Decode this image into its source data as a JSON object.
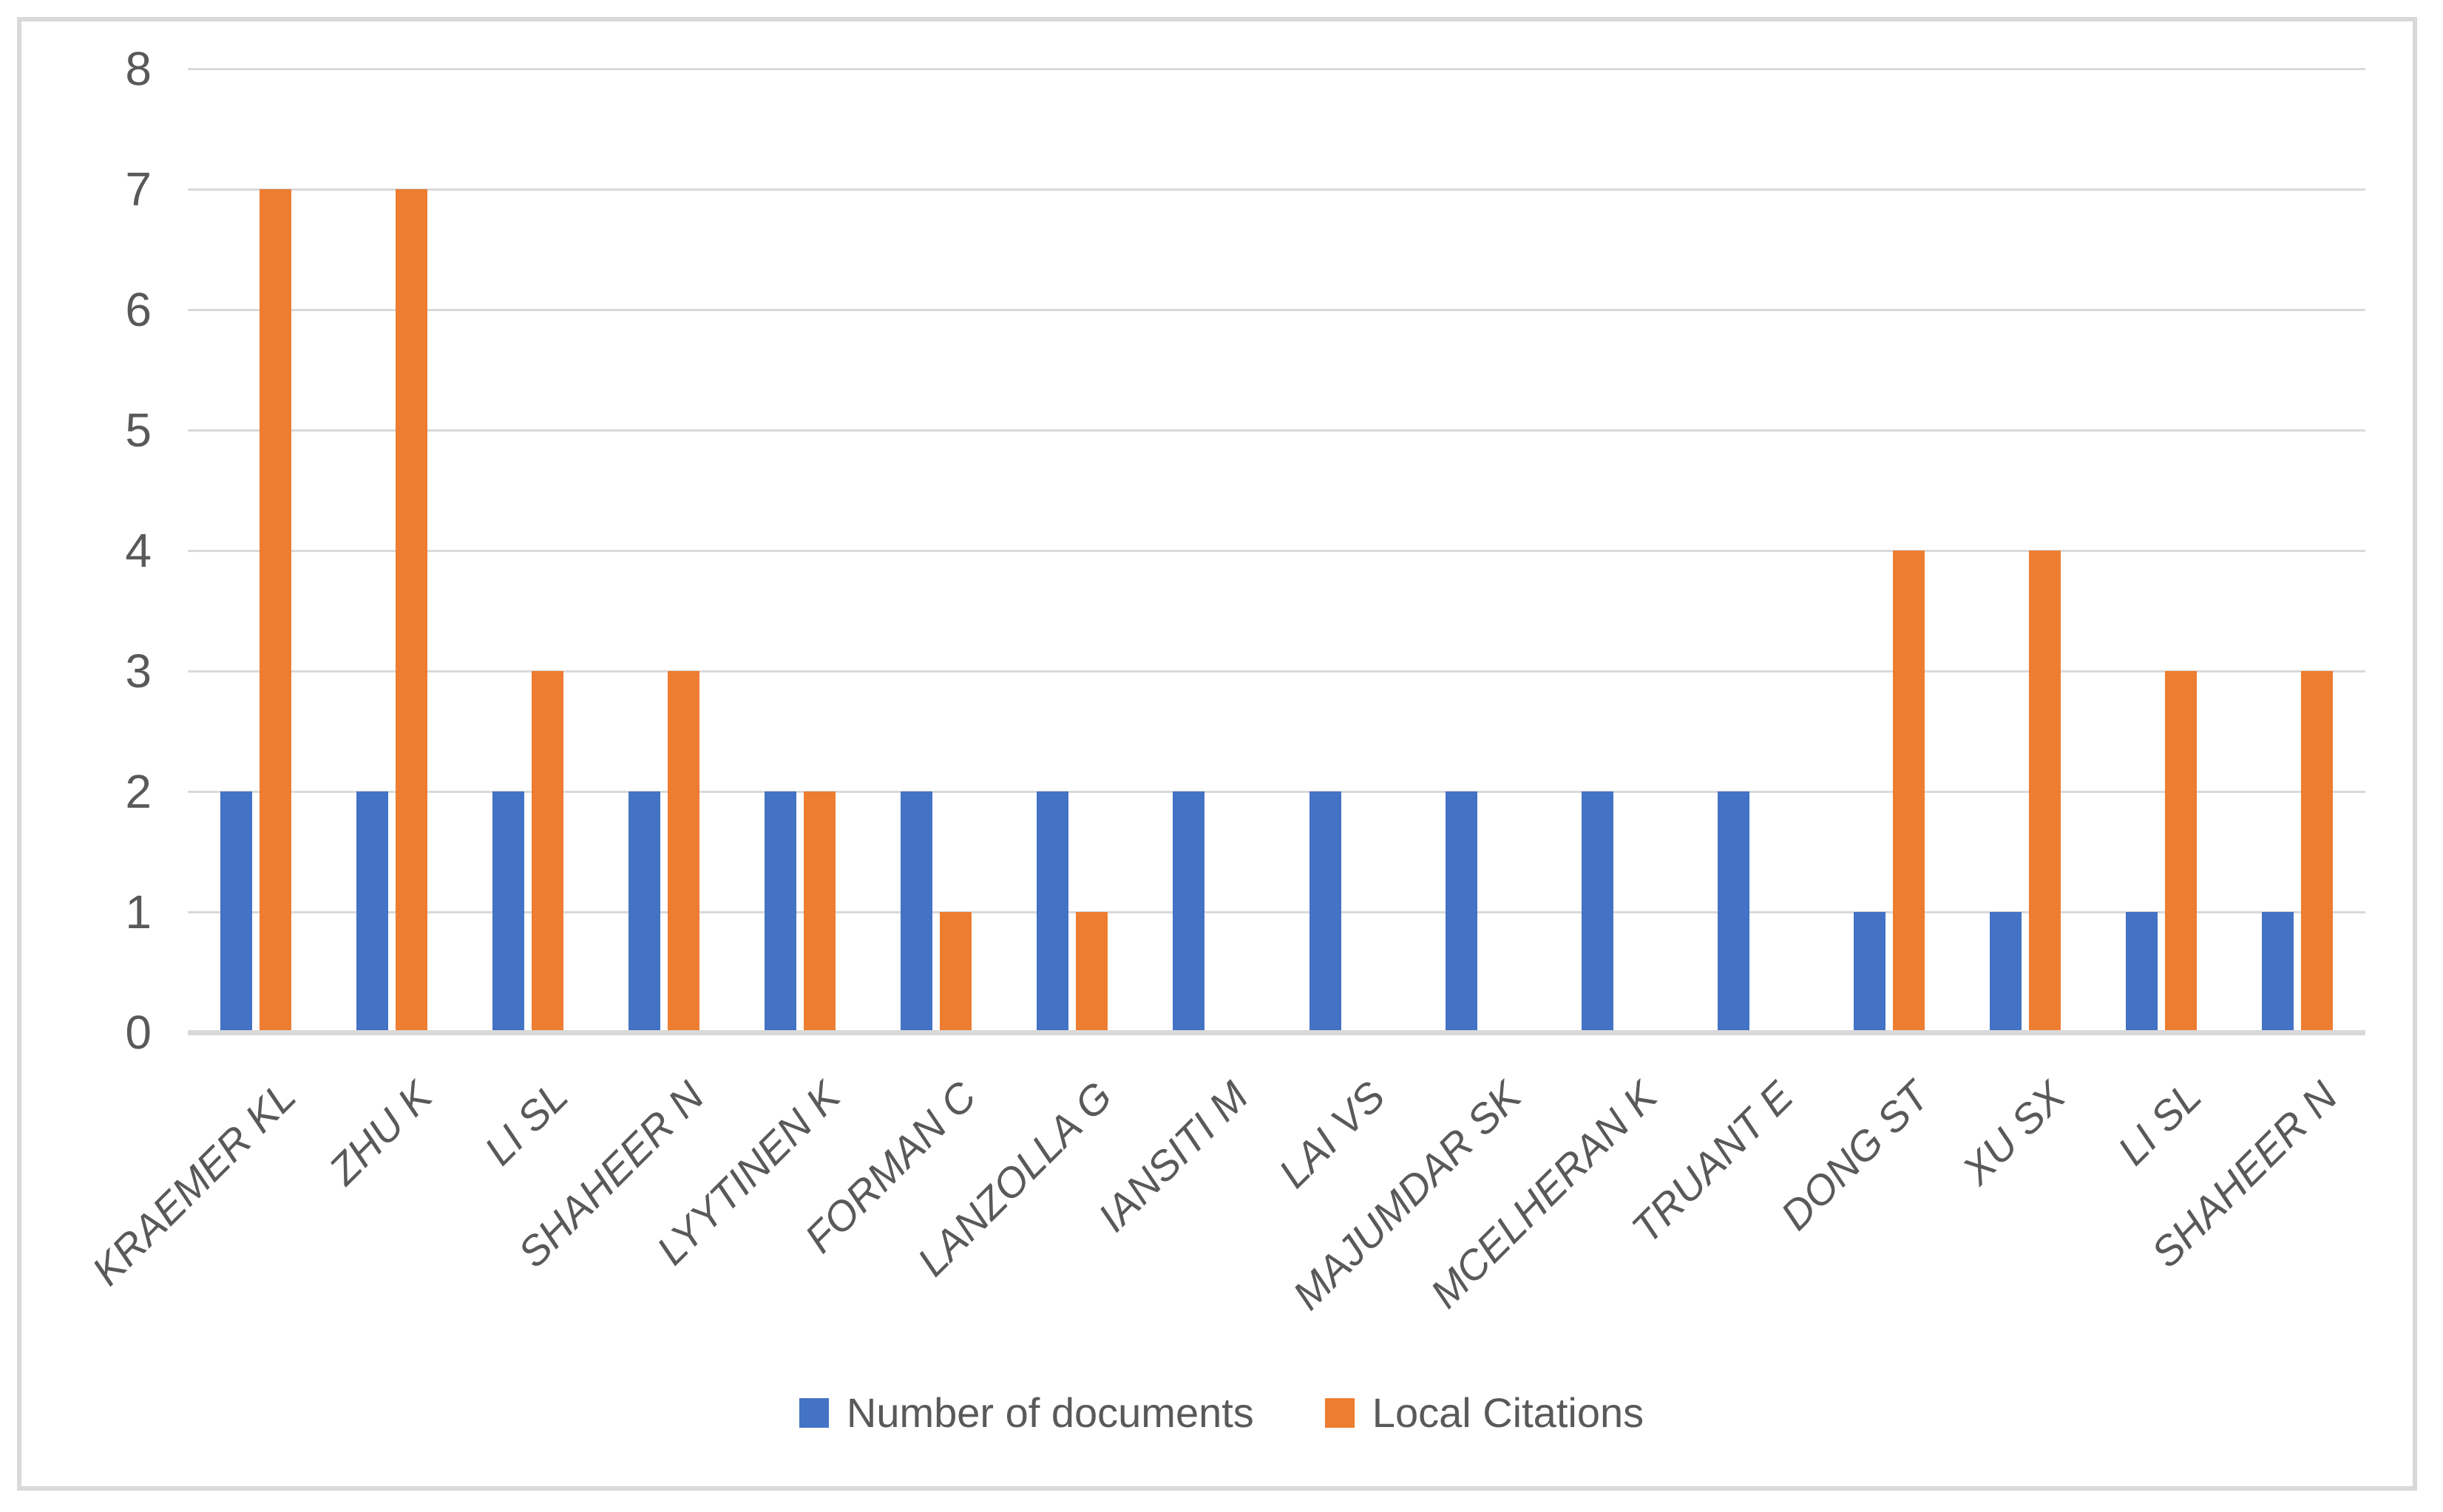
{
  "chart_data": {
    "type": "bar",
    "title": "",
    "xlabel": "",
    "ylabel": "",
    "categories": [
      "KRAEMER KL",
      "ZHU K",
      "LI SL",
      "SHAHEER N",
      "LYYTINEN K",
      "FORMAN C",
      "LANZOLLA G",
      "IANSITI M",
      "LAI VS",
      "MAJUMDAR SK",
      "MCELHERAN K",
      "TRUANT E",
      "DONG ST",
      "XU SX",
      "LI SL",
      "SHAHEER N"
    ],
    "series": [
      {
        "name": "Number of documents",
        "color": "#4472C4",
        "values": [
          2,
          2,
          2,
          2,
          2,
          2,
          2,
          2,
          2,
          2,
          2,
          2,
          1,
          1,
          1,
          1
        ]
      },
      {
        "name": "Local Citations",
        "color": "#ED7D31",
        "values": [
          7,
          7,
          3,
          3,
          2,
          1,
          1,
          0,
          0,
          0,
          0,
          0,
          4,
          4,
          3,
          3
        ]
      }
    ],
    "ylim": [
      0,
      8
    ],
    "yticks": [
      0,
      1,
      2,
      3,
      4,
      5,
      6,
      7,
      8
    ],
    "grid": "horizontal gridlines on",
    "legend_position": "bottom"
  },
  "colors": {
    "gridline": "#D9D9D9",
    "axis_line": "#D9D9D9",
    "frame_border": "#D9D9D9",
    "tick_text": "#595959",
    "background": "#FFFFFF"
  }
}
